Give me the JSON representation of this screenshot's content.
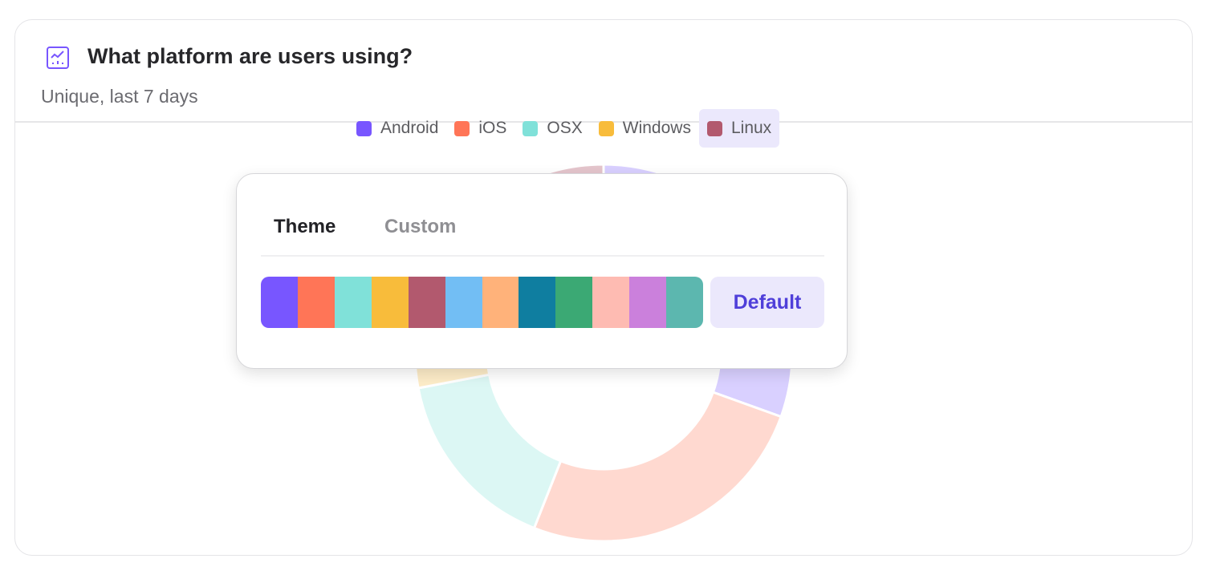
{
  "card": {
    "title": "What platform are users using?",
    "subtitle": "Unique, last 7 days",
    "icon": "line-chart-icon",
    "accent": "#7856ff"
  },
  "legend": [
    {
      "label": "Android",
      "color": "#7856ff"
    },
    {
      "label": "iOS",
      "color": "#ff7557"
    },
    {
      "label": "OSX",
      "color": "#80e1d9"
    },
    {
      "label": "Windows",
      "color": "#f8bc3b"
    },
    {
      "label": "Linux",
      "color": "#b2596e",
      "active": true
    }
  ],
  "chart_data": {
    "type": "pie",
    "variant": "donut",
    "categories": [
      "Android",
      "iOS",
      "OSX",
      "Windows",
      "Linux"
    ],
    "values": [
      30.5,
      25.5,
      16,
      20,
      8
    ],
    "colors": [
      "#7856ff",
      "#ff7557",
      "#80e1d9",
      "#f8bc3b",
      "#b2596e"
    ],
    "highlighted": "Linux"
  },
  "popup": {
    "tabs": [
      {
        "label": "Theme",
        "active": true
      },
      {
        "label": "Custom",
        "active": false
      }
    ],
    "palette": [
      "#7856ff",
      "#ff7557",
      "#80e1d9",
      "#f8bc3b",
      "#b2596e",
      "#72bef4",
      "#ffb27a",
      "#0f7ea0",
      "#3ba974",
      "#febbb2",
      "#cb80dc",
      "#5cb7af"
    ],
    "default_label": "Default"
  }
}
